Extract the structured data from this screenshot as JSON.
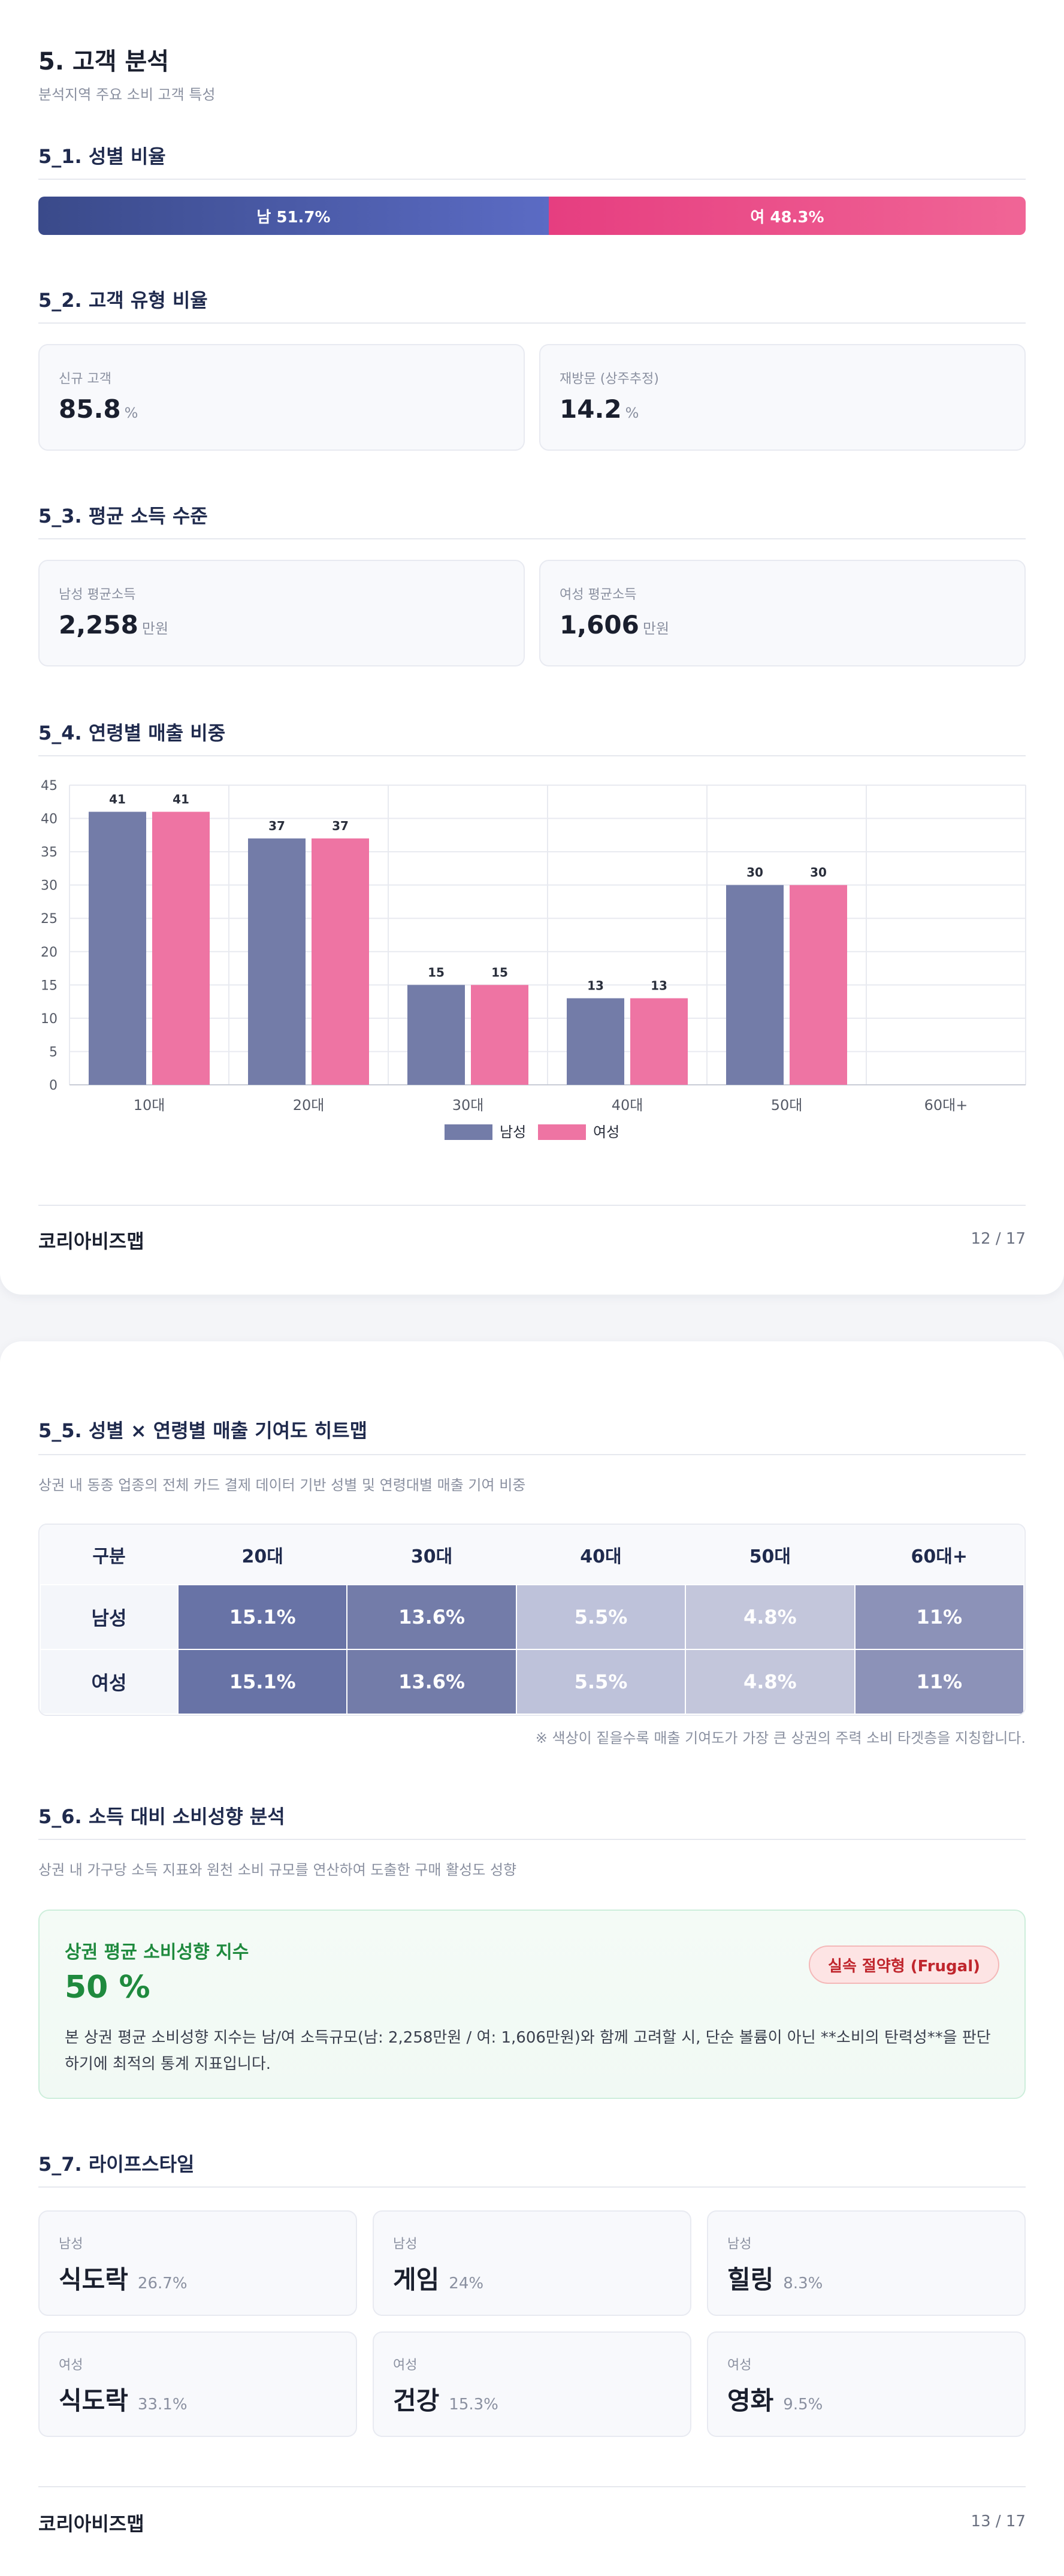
{
  "page1": {
    "title": "5. 고객 분석",
    "subtitle": "분석지역 주요 소비 고객 특성",
    "gender": {
      "heading": "5_1. 성별 비율",
      "male_label": "남 51.7%",
      "female_label": "여 48.3%",
      "male_pct": 51.7,
      "female_pct": 48.3
    },
    "customer_type": {
      "heading": "5_2. 고객 유형 비율",
      "new_label": "신규 고객",
      "new_value": "85.8",
      "new_unit": "%",
      "return_label": "재방문 (상주추정)",
      "return_value": "14.2",
      "return_unit": "%"
    },
    "income": {
      "heading": "5_3. 평균 소득 수준",
      "male_label": "남성 평균소득",
      "male_value": "2,258",
      "male_unit": "만원",
      "female_label": "여성 평균소득",
      "female_value": "1,606",
      "female_unit": "만원"
    },
    "age_sales_heading": "5_4. 연령별 매출 비중",
    "footer_brand": "코리아비즈맵",
    "footer_page": "12 / 17"
  },
  "chart_data": {
    "type": "bar",
    "categories": [
      "10대",
      "20대",
      "30대",
      "40대",
      "50대",
      "60대+"
    ],
    "series": [
      {
        "name": "남성",
        "values": [
          41,
          37,
          15,
          13,
          30,
          null
        ],
        "color": "#737ca8"
      },
      {
        "name": "여성",
        "values": [
          41,
          37,
          15,
          13,
          30,
          null
        ],
        "color": "#ee74a3"
      }
    ],
    "yticks": [
      0,
      5,
      10,
      15,
      20,
      25,
      30,
      35,
      40,
      45
    ],
    "ylim": [
      0,
      45
    ],
    "grid": true,
    "legend": "bottom"
  },
  "page2": {
    "heatmap_heading": "5_5. 성별 × 연령별 매출 기여도 히트맵",
    "heatmap_sub": "상권 내 동종 업종의 전체 카드 결제 데이터 기반 성별 및 연령대별 매출 기여 비중",
    "heatmap": {
      "corner": "구분",
      "columns": [
        "20대",
        "30대",
        "40대",
        "50대",
        "60대+"
      ],
      "rows": [
        {
          "label": "남성",
          "cells": [
            "15.1%",
            "13.6%",
            "5.5%",
            "4.8%",
            "11%"
          ]
        },
        {
          "label": "여성",
          "cells": [
            "15.1%",
            "13.6%",
            "5.5%",
            "4.8%",
            "11%"
          ]
        }
      ],
      "colors": [
        "#6873a6",
        "#737ca9",
        "#bec2da",
        "#c3c6db",
        "#8c92b8"
      ]
    },
    "heatmap_note": "※ 색상이 짙을수록 매출 기여도가 가장 큰 상권의 주력 소비 타겟층을 지칭합니다.",
    "propensity_heading": "5_6. 소득 대비 소비성향 분석",
    "propensity_sub": "상권 내 가구당 소득 지표와 원천 소비 규모를 연산하여 도출한 구매 활성도 성향",
    "propensity": {
      "title": "상권 평균 소비성향 지수",
      "value": "50 %",
      "badge": "실속 절약형 (Frugal)",
      "desc": "본 상권 평균 소비성향 지수는 남/여 소득규모(남: 2,258만원 / 여: 1,606만원)와 함께 고려할 시, 단순 볼륨이 아닌 **소비의 탄력성**을 판단하기에 최적의 통계 지표입니다."
    },
    "lifestyle_heading": "5_7. 라이프스타일",
    "lifestyle": [
      {
        "gender": "남성",
        "name": "식도락",
        "pct": "26.7%"
      },
      {
        "gender": "남성",
        "name": "게임",
        "pct": "24%"
      },
      {
        "gender": "남성",
        "name": "힐링",
        "pct": "8.3%"
      },
      {
        "gender": "여성",
        "name": "식도락",
        "pct": "33.1%"
      },
      {
        "gender": "여성",
        "name": "건강",
        "pct": "15.3%"
      },
      {
        "gender": "여성",
        "name": "영화",
        "pct": "9.5%"
      }
    ],
    "footer_brand": "코리아비즈맵",
    "footer_page": "13 / 17"
  }
}
